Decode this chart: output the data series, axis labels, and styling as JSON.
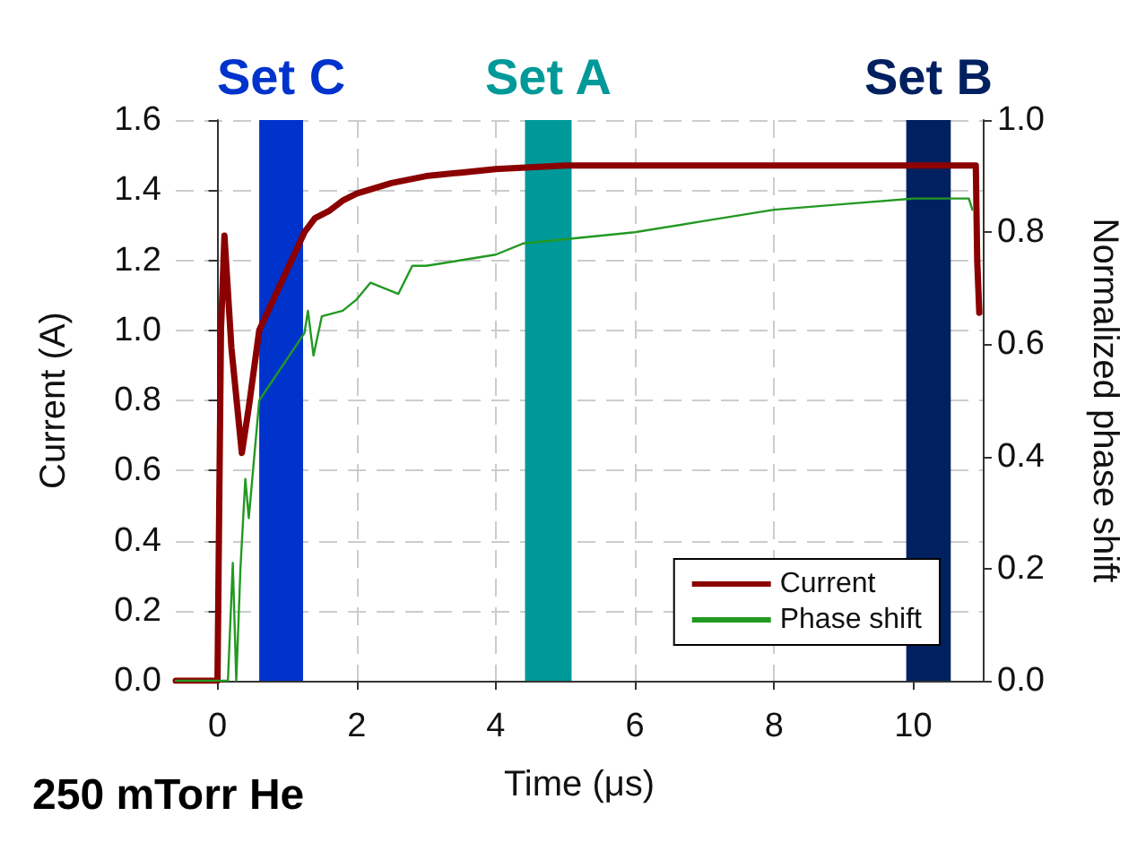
{
  "chart_data": {
    "type": "line",
    "xlabel": "Time (μs)",
    "ylabel": "Current (A)",
    "y2label": "Normalized phase shift",
    "annotations": [
      "250 mTorr He"
    ],
    "xlim": [
      -0.6,
      11
    ],
    "xticks": [
      0,
      2,
      4,
      6,
      8,
      10
    ],
    "ylim": [
      0,
      1.6
    ],
    "yticks": [
      {
        "value": 0,
        "label": "0.0"
      },
      0.2,
      0.4,
      0.6,
      0.8,
      {
        "value": 1,
        "label": "1.0"
      },
      1.2,
      1.4,
      1.6
    ],
    "y2lim": [
      0,
      1
    ],
    "y2ticks": [
      {
        "value": 0,
        "label": "0.0"
      },
      0.2,
      0.4,
      0.6,
      0.8,
      {
        "value": 1,
        "label": "1.0"
      }
    ],
    "grid": true,
    "legend": "bottom right",
    "marker": "none",
    "line_style": "solid",
    "bands": [
      {
        "axis": "x",
        "from": 0.6,
        "to": 1.23,
        "label": "Set C",
        "color": "#0033cc"
      },
      {
        "axis": "x",
        "from": 4.42,
        "to": 5.09,
        "label": "Set A",
        "color": "#009999"
      },
      {
        "axis": "x",
        "from": 9.9,
        "to": 10.54,
        "label": "Set B",
        "color": "#002060"
      }
    ],
    "series": [
      {
        "name": "Current",
        "color": "#8b0000",
        "x": [
          -0.6,
          0,
          0.05,
          0.1,
          0.2,
          0.35,
          0.45,
          0.6,
          1.25,
          1.4,
          1.6,
          1.8,
          2.0,
          2.5,
          3.0,
          3.5,
          4.0,
          5.0,
          6.0,
          8.0,
          10.0,
          10.9,
          10.92,
          10.95
        ],
        "values": [
          0,
          0,
          1.0,
          1.27,
          0.95,
          0.65,
          0.78,
          1.0,
          1.28,
          1.32,
          1.34,
          1.37,
          1.39,
          1.42,
          1.44,
          1.45,
          1.46,
          1.47,
          1.47,
          1.47,
          1.47,
          1.47,
          1.2,
          1.05
        ]
      },
      {
        "name": "Phase shift",
        "color": "#229922",
        "axis": "y2",
        "x": [
          -0.6,
          0.15,
          0.22,
          0.27,
          0.33,
          0.4,
          0.45,
          0.6,
          1.25,
          1.3,
          1.38,
          1.5,
          1.8,
          2.0,
          2.2,
          2.6,
          2.8,
          3.0,
          3.5,
          4.0,
          4.4,
          5.2,
          6.0,
          7.0,
          8.0,
          9.0,
          10.0,
          10.8,
          10.85
        ],
        "values": [
          0,
          0,
          0.21,
          0,
          0.2,
          0.36,
          0.29,
          0.5,
          0.62,
          0.66,
          0.58,
          0.65,
          0.66,
          0.68,
          0.71,
          0.69,
          0.74,
          0.74,
          0.75,
          0.76,
          0.78,
          0.79,
          0.8,
          0.82,
          0.84,
          0.85,
          0.86,
          0.86,
          0.84
        ]
      }
    ]
  }
}
